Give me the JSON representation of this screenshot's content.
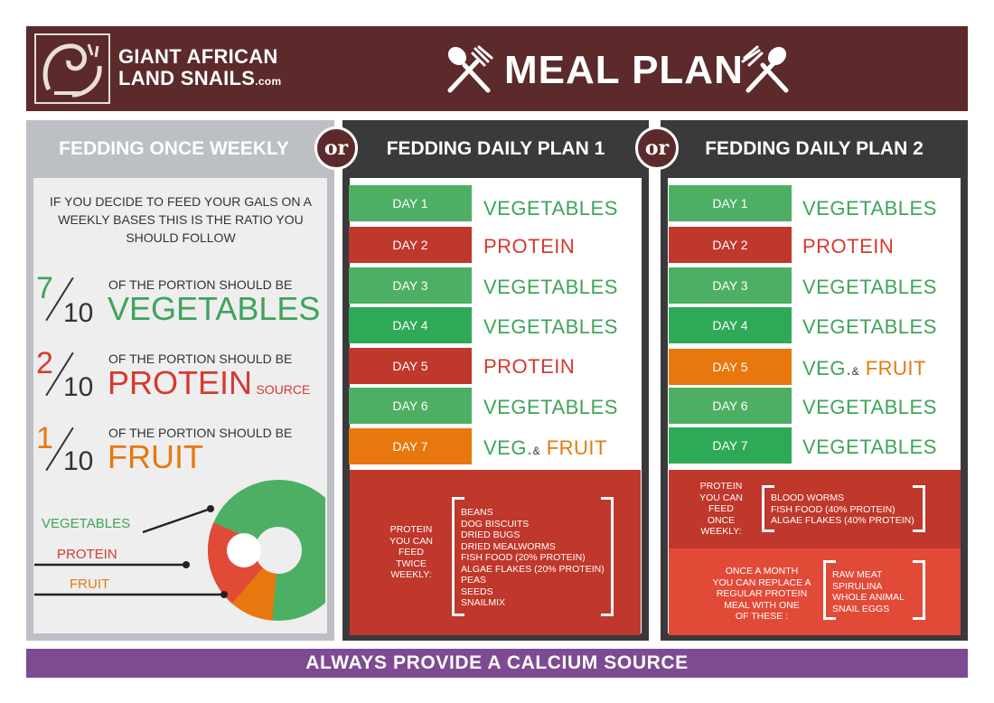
{
  "brand": {
    "line1": "GIANT AFRICAN",
    "line2": "LAND SNAILS",
    "suffix": ".com"
  },
  "title": "MEAL PLAN",
  "or_label": "or",
  "columns": {
    "weekly": {
      "heading": "FEDDING ONCE WEEKLY",
      "intro": "IF YOU DECIDE TO FEED YOUR GALS ON A WEEKLY BASES THIS IS THE RATIO YOU SHOULD FOLLOW",
      "portions": [
        {
          "num": "7",
          "den": "10",
          "text": "OF THE PORTION SHOULD BE",
          "food": "VEGETABLES",
          "extra": ""
        },
        {
          "num": "2",
          "den": "10",
          "text": "OF THE PORTION SHOULD BE",
          "food": "PROTEIN",
          "extra": "SOURCE"
        },
        {
          "num": "1",
          "den": "10",
          "text": "OF THE PORTION SHOULD BE",
          "food": "FRUIT",
          "extra": ""
        }
      ],
      "legend": [
        "VEGETABLES",
        "PROTEIN",
        "FRUIT"
      ]
    },
    "plan1": {
      "heading": "FEDDING DAILY PLAN 1",
      "days": [
        {
          "day": "DAY 1",
          "food": "VEGETABLES"
        },
        {
          "day": "DAY 2",
          "food": "PROTEIN"
        },
        {
          "day": "DAY 3",
          "food": "VEGETABLES"
        },
        {
          "day": "DAY 4",
          "food": "VEGETABLES"
        },
        {
          "day": "DAY 5",
          "food": "PROTEIN"
        },
        {
          "day": "DAY 6",
          "food": "VEGETABLES"
        },
        {
          "day": "DAY 7",
          "food_a": "VEG.",
          "amp": "&",
          "food_b": "FRUIT"
        }
      ],
      "protein_note": [
        "PROTEIN",
        "YOU CAN",
        "FEED",
        "TWICE",
        "WEEKLY:"
      ],
      "protein_list": [
        "BEANS",
        "DOG BISCUITS",
        "DRIED BUGS",
        "DRIED MEALWORMS",
        "FISH FOOD (20% PROTEIN)",
        "ALGAE FLAKES (20% PROTEIN)",
        "PEAS",
        "SEEDS",
        "SNAILMIX"
      ]
    },
    "plan2": {
      "heading": "FEDDING DAILY PLAN 2",
      "days": [
        {
          "day": "DAY 1",
          "food": "VEGETABLES"
        },
        {
          "day": "DAY 2",
          "food": "PROTEIN"
        },
        {
          "day": "DAY 3",
          "food": "VEGETABLES"
        },
        {
          "day": "DAY 4",
          "food": "VEGETABLES"
        },
        {
          "day": "DAY 5",
          "food_a": "VEG.",
          "amp": "&",
          "food_b": "FRUIT"
        },
        {
          "day": "DAY 6",
          "food": "VEGETABLES"
        },
        {
          "day": "DAY 7",
          "food": "VEGETABLES"
        }
      ],
      "protein_note": [
        "PROTEIN",
        "YOU CAN",
        "FEED",
        "ONCE",
        "WEEKLY:"
      ],
      "protein_list": [
        "BLOOD WORMS",
        "FISH FOOD (40% PROTEIN)",
        "ALGAE FLAKES (40% PROTEIN)"
      ],
      "replace_note": [
        "ONCE A MONTH",
        "YOU CAN REPLACE A",
        "REGULAR PROTEIN",
        "MEAL WITH ONE",
        "OF THESE :"
      ],
      "replace_list": [
        "RAW MEAT",
        "SPIRULINA",
        "WHOLE ANIMAL",
        "SNAIL EGGS"
      ]
    }
  },
  "donut": {
    "vegetables": 0.7,
    "protein": 0.2,
    "fruit": 0.1
  },
  "footer": "ALWAYS PROVIDE A CALCIUM SOURCE",
  "colors": {
    "brown": "#5c2a2b",
    "green": "#4daf63",
    "red": "#c0372b",
    "orange": "#e8780d",
    "purple": "#7e4a92"
  }
}
